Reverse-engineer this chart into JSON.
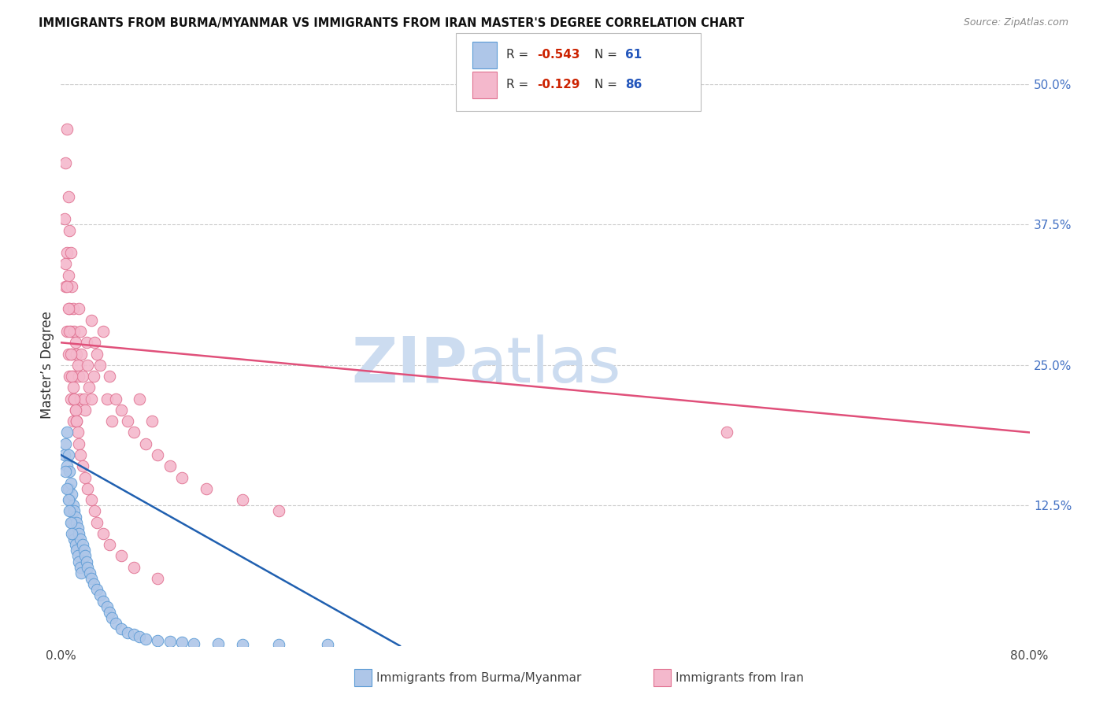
{
  "title": "IMMIGRANTS FROM BURMA/MYANMAR VS IMMIGRANTS FROM IRAN MASTER'S DEGREE CORRELATION CHART",
  "source": "Source: ZipAtlas.com",
  "ylabel": "Master’s Degree",
  "yticks": [
    0.0,
    0.125,
    0.25,
    0.375,
    0.5
  ],
  "ytick_labels": [
    "",
    "12.5%",
    "25.0%",
    "37.5%",
    "50.0%"
  ],
  "burma_R": -0.543,
  "burma_N": 61,
  "iran_R": -0.129,
  "iran_N": 86,
  "burma_color": "#aec6e8",
  "burma_edge": "#5b9bd5",
  "iran_color": "#f4b8cc",
  "iran_edge": "#e07090",
  "burma_line_color": "#2060b0",
  "iran_line_color": "#e0507a",
  "background_color": "#ffffff",
  "xlim": [
    0.0,
    0.8
  ],
  "ylim": [
    0.0,
    0.5
  ],
  "burma_x": [
    0.003,
    0.004,
    0.005,
    0.005,
    0.006,
    0.006,
    0.007,
    0.007,
    0.008,
    0.008,
    0.009,
    0.009,
    0.01,
    0.01,
    0.011,
    0.011,
    0.012,
    0.012,
    0.013,
    0.013,
    0.014,
    0.014,
    0.015,
    0.015,
    0.016,
    0.016,
    0.017,
    0.018,
    0.019,
    0.02,
    0.021,
    0.022,
    0.024,
    0.025,
    0.027,
    0.03,
    0.032,
    0.035,
    0.038,
    0.04,
    0.042,
    0.045,
    0.05,
    0.055,
    0.06,
    0.065,
    0.07,
    0.08,
    0.09,
    0.1,
    0.11,
    0.13,
    0.15,
    0.18,
    0.22,
    0.004,
    0.005,
    0.006,
    0.007,
    0.008,
    0.009
  ],
  "burma_y": [
    0.17,
    0.18,
    0.16,
    0.19,
    0.14,
    0.17,
    0.13,
    0.155,
    0.12,
    0.145,
    0.11,
    0.135,
    0.1,
    0.125,
    0.095,
    0.12,
    0.09,
    0.115,
    0.085,
    0.11,
    0.08,
    0.105,
    0.075,
    0.1,
    0.07,
    0.095,
    0.065,
    0.09,
    0.085,
    0.08,
    0.075,
    0.07,
    0.065,
    0.06,
    0.055,
    0.05,
    0.045,
    0.04,
    0.035,
    0.03,
    0.025,
    0.02,
    0.015,
    0.012,
    0.01,
    0.008,
    0.006,
    0.005,
    0.004,
    0.003,
    0.002,
    0.002,
    0.001,
    0.001,
    0.001,
    0.155,
    0.14,
    0.13,
    0.12,
    0.11,
    0.1
  ],
  "iran_x": [
    0.003,
    0.004,
    0.004,
    0.005,
    0.005,
    0.005,
    0.006,
    0.006,
    0.006,
    0.007,
    0.007,
    0.007,
    0.008,
    0.008,
    0.008,
    0.009,
    0.009,
    0.01,
    0.01,
    0.01,
    0.011,
    0.011,
    0.012,
    0.012,
    0.013,
    0.013,
    0.014,
    0.015,
    0.015,
    0.016,
    0.016,
    0.017,
    0.018,
    0.019,
    0.02,
    0.021,
    0.022,
    0.023,
    0.025,
    0.025,
    0.027,
    0.028,
    0.03,
    0.032,
    0.035,
    0.038,
    0.04,
    0.042,
    0.045,
    0.05,
    0.055,
    0.06,
    0.065,
    0.07,
    0.075,
    0.08,
    0.09,
    0.1,
    0.12,
    0.15,
    0.18,
    0.55,
    0.004,
    0.005,
    0.006,
    0.007,
    0.008,
    0.009,
    0.01,
    0.011,
    0.012,
    0.013,
    0.014,
    0.015,
    0.016,
    0.018,
    0.02,
    0.022,
    0.025,
    0.028,
    0.03,
    0.035,
    0.04,
    0.05,
    0.06,
    0.08
  ],
  "iran_y": [
    0.38,
    0.43,
    0.32,
    0.46,
    0.35,
    0.28,
    0.4,
    0.33,
    0.26,
    0.37,
    0.3,
    0.24,
    0.35,
    0.28,
    0.22,
    0.32,
    0.26,
    0.3,
    0.24,
    0.2,
    0.28,
    0.22,
    0.27,
    0.21,
    0.26,
    0.2,
    0.25,
    0.3,
    0.24,
    0.28,
    0.22,
    0.26,
    0.24,
    0.22,
    0.21,
    0.27,
    0.25,
    0.23,
    0.29,
    0.22,
    0.24,
    0.27,
    0.26,
    0.25,
    0.28,
    0.22,
    0.24,
    0.2,
    0.22,
    0.21,
    0.2,
    0.19,
    0.22,
    0.18,
    0.2,
    0.17,
    0.16,
    0.15,
    0.14,
    0.13,
    0.12,
    0.19,
    0.34,
    0.32,
    0.3,
    0.28,
    0.26,
    0.24,
    0.23,
    0.22,
    0.21,
    0.2,
    0.19,
    0.18,
    0.17,
    0.16,
    0.15,
    0.14,
    0.13,
    0.12,
    0.11,
    0.1,
    0.09,
    0.08,
    0.07,
    0.06
  ]
}
